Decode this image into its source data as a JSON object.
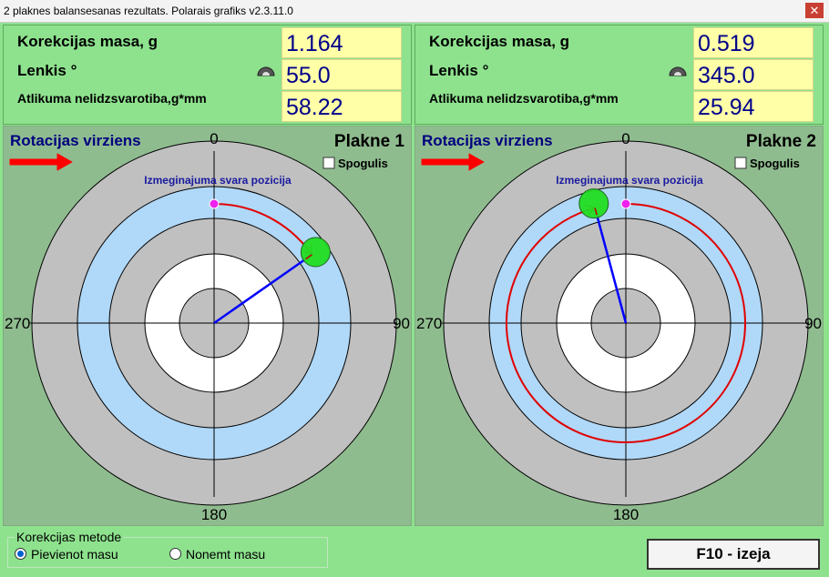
{
  "window": {
    "title": "2 plaknes balansesanas rezultats. Polarais grafiks v2.3.11.0"
  },
  "planes": [
    {
      "rows": [
        {
          "label": "Korekcijas masa, g",
          "value": "1.164"
        },
        {
          "label": "Lenkis °",
          "value": "55.0"
        },
        {
          "label": "Atlikuma nelidzsvarotiba,g*mm",
          "value": "58.22"
        }
      ],
      "rotation_label": "Rotacijas virziens",
      "plane_label": "Plakne 1",
      "mirror_label": "Spogulis",
      "trial_label": "Izmeginajuma svara pozicija",
      "axis_labels": [
        "0",
        "90",
        "180",
        "270"
      ]
    },
    {
      "rows": [
        {
          "label": "Korekcijas masa, g",
          "value": "0.519"
        },
        {
          "label": "Lenkis °",
          "value": "345.0"
        },
        {
          "label": "Atlikuma nelidzsvarotiba,g*mm",
          "value": "25.94"
        }
      ],
      "rotation_label": "Rotacijas virziens",
      "plane_label": "Plakne 2",
      "mirror_label": "Spogulis",
      "trial_label": "Izmeginajuma svara pozicija",
      "axis_labels": [
        "0",
        "90",
        "180",
        "270"
      ]
    }
  ],
  "method": {
    "title": "Korekcijas metode",
    "options": [
      "Pievienot masu",
      "Nonemt masu"
    ],
    "selected": 0
  },
  "exit_button": "F10 - izeja"
}
